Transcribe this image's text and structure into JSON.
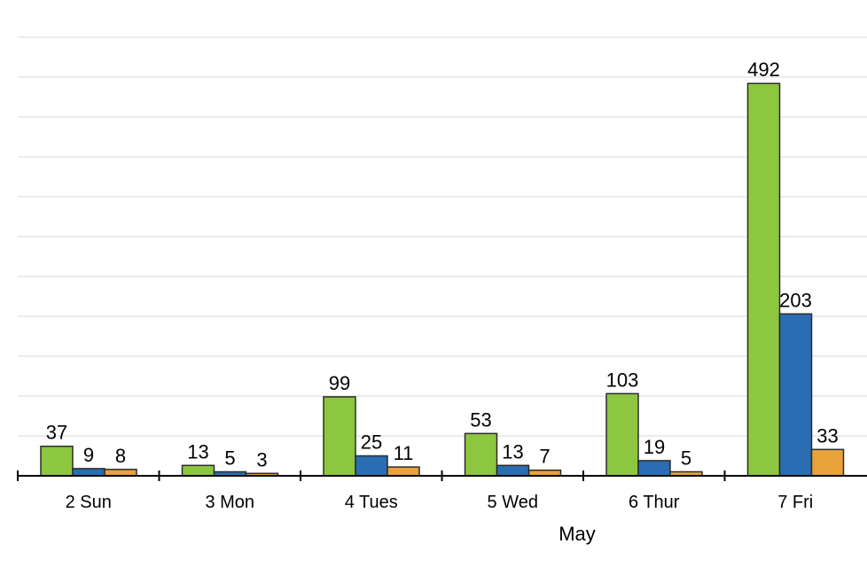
{
  "chart_data": {
    "type": "bar",
    "title": "",
    "xlabel": "May",
    "ylabel": "",
    "categories": [
      "2 Sun",
      "3 Mon",
      "4 Tues",
      "5 Wed",
      "6 Thur",
      "7 Fri"
    ],
    "series": [
      {
        "values": [
          37,
          13,
          99,
          53,
          103,
          492
        ],
        "color": "#8dc63f"
      },
      {
        "values": [
          9,
          5,
          25,
          13,
          19,
          203
        ],
        "color": "#2a6db2"
      },
      {
        "values": [
          8,
          3,
          11,
          7,
          5,
          33
        ],
        "color": "#e8a23a"
      }
    ],
    "ylim": [
      0,
      550
    ],
    "grid": true,
    "legend": "none"
  }
}
